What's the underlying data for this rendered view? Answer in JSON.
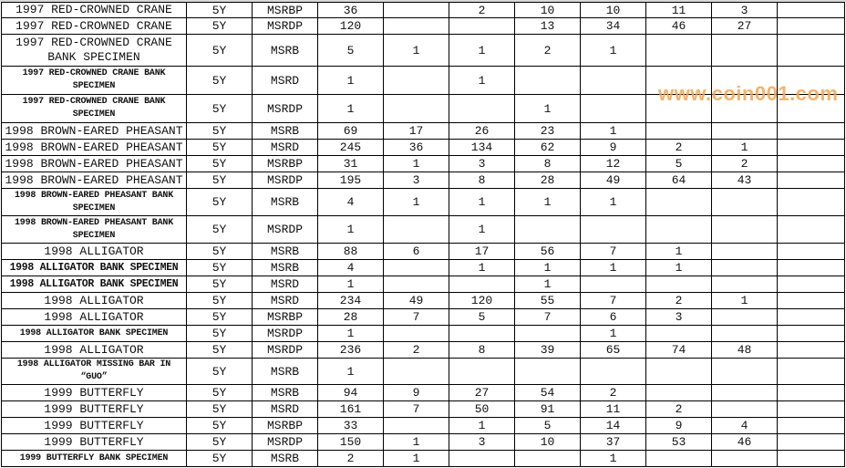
{
  "watermark": "www.coin001.com",
  "rows": [
    {
      "name": "1997 RED-CROWNED CRANE",
      "term": "5Y",
      "type": "MSRBP",
      "values": [
        "36",
        "",
        "2",
        "10",
        "10",
        "11",
        "3"
      ]
    },
    {
      "name": "1997 RED-CROWNED CRANE",
      "term": "5Y",
      "type": "MSRDP",
      "values": [
        "120",
        "",
        "",
        "13",
        "34",
        "46",
        "27"
      ]
    },
    {
      "name": "1997 RED-CROWNED CRANE BANK SPECIMEN",
      "term": "5Y",
      "type": "MSRB",
      "values": [
        "5",
        "1",
        "1",
        "2",
        "1",
        "",
        ""
      ]
    },
    {
      "name": "1997 RED-CROWNED CRANE BANK SPECIMEN",
      "term": "5Y",
      "type": "MSRD",
      "values": [
        "1",
        "",
        "1",
        "",
        "",
        "",
        ""
      ]
    },
    {
      "name": "1997 RED-CROWNED CRANE BANK SPECIMEN",
      "term": "5Y",
      "type": "MSRDP",
      "values": [
        "1",
        "",
        "",
        "1",
        "",
        "",
        ""
      ]
    },
    {
      "name": "1998 BROWN-EARED PHEASANT",
      "term": "5Y",
      "type": "MSRB",
      "values": [
        "69",
        "17",
        "26",
        "23",
        "1",
        "",
        ""
      ]
    },
    {
      "name": "1998 BROWN-EARED PHEASANT",
      "term": "5Y",
      "type": "MSRD",
      "values": [
        "245",
        "36",
        "134",
        "62",
        "9",
        "2",
        "1"
      ]
    },
    {
      "name": "1998 BROWN-EARED PHEASANT",
      "term": "5Y",
      "type": "MSRBP",
      "values": [
        "31",
        "1",
        "3",
        "8",
        "12",
        "5",
        "2"
      ]
    },
    {
      "name": "1998 BROWN-EARED PHEASANT",
      "term": "5Y",
      "type": "MSRDP",
      "values": [
        "195",
        "3",
        "8",
        "28",
        "49",
        "64",
        "43"
      ]
    },
    {
      "name": "1998 BROWN-EARED PHEASANT BANK SPECIMEN",
      "term": "5Y",
      "type": "MSRB",
      "values": [
        "4",
        "1",
        "1",
        "1",
        "1",
        "",
        ""
      ]
    },
    {
      "name": "1998 BROWN-EARED PHEASANT BANK SPECIMEN",
      "term": "5Y",
      "type": "MSRDP",
      "values": [
        "1",
        "",
        "1",
        "",
        "",
        "",
        ""
      ]
    },
    {
      "name": "1998 ALLIGATOR",
      "term": "5Y",
      "type": "MSRB",
      "values": [
        "88",
        "6",
        "17",
        "56",
        "7",
        "1",
        ""
      ]
    },
    {
      "name": "1998 ALLIGATOR BANK SPECIMEN",
      "term": "5Y",
      "type": "MSRB",
      "values": [
        "4",
        "",
        "1",
        "1",
        "1",
        "1",
        ""
      ]
    },
    {
      "name": "1998 ALLIGATOR BANK SPECIMEN",
      "term": "5Y",
      "type": "MSRD",
      "values": [
        "1",
        "",
        "",
        "1",
        "",
        "",
        ""
      ]
    },
    {
      "name": "1998 ALLIGATOR",
      "term": "5Y",
      "type": "MSRD",
      "values": [
        "234",
        "49",
        "120",
        "55",
        "7",
        "2",
        "1"
      ]
    },
    {
      "name": "1998 ALLIGATOR",
      "term": "5Y",
      "type": "MSRBP",
      "values": [
        "28",
        "7",
        "5",
        "7",
        "6",
        "3",
        ""
      ]
    },
    {
      "name": "1998 ALLIGATOR BANK SPECIMEN",
      "term": "5Y",
      "type": "MSRDP",
      "values": [
        "1",
        "",
        "",
        "",
        "1",
        "",
        ""
      ]
    },
    {
      "name": "1998 ALLIGATOR",
      "term": "5Y",
      "type": "MSRDP",
      "values": [
        "236",
        "2",
        "8",
        "39",
        "65",
        "74",
        "48"
      ]
    },
    {
      "name": "1998 ALLIGATOR MISSING BAR IN “GUO”",
      "term": "5Y",
      "type": "MSRB",
      "values": [
        "1",
        "",
        "",
        "",
        "",
        "",
        ""
      ]
    },
    {
      "name": "1999 BUTTERFLY",
      "term": "5Y",
      "type": "MSRB",
      "values": [
        "94",
        "9",
        "27",
        "54",
        "2",
        "",
        ""
      ]
    },
    {
      "name": "1999 BUTTERFLY",
      "term": "5Y",
      "type": "MSRD",
      "values": [
        "161",
        "7",
        "50",
        "91",
        "11",
        "2",
        ""
      ]
    },
    {
      "name": "1999 BUTTERFLY",
      "term": "5Y",
      "type": "MSRBP",
      "values": [
        "33",
        "",
        "1",
        "5",
        "14",
        "9",
        "4"
      ]
    },
    {
      "name": "1999 BUTTERFLY",
      "term": "5Y",
      "type": "MSRDP",
      "values": [
        "150",
        "1",
        "3",
        "10",
        "37",
        "53",
        "46"
      ]
    },
    {
      "name": "1999 BUTTERFLY BANK SPECIMEN",
      "term": "5Y",
      "type": "MSRB",
      "values": [
        "2",
        "1",
        "",
        "",
        "1",
        "",
        ""
      ]
    }
  ]
}
